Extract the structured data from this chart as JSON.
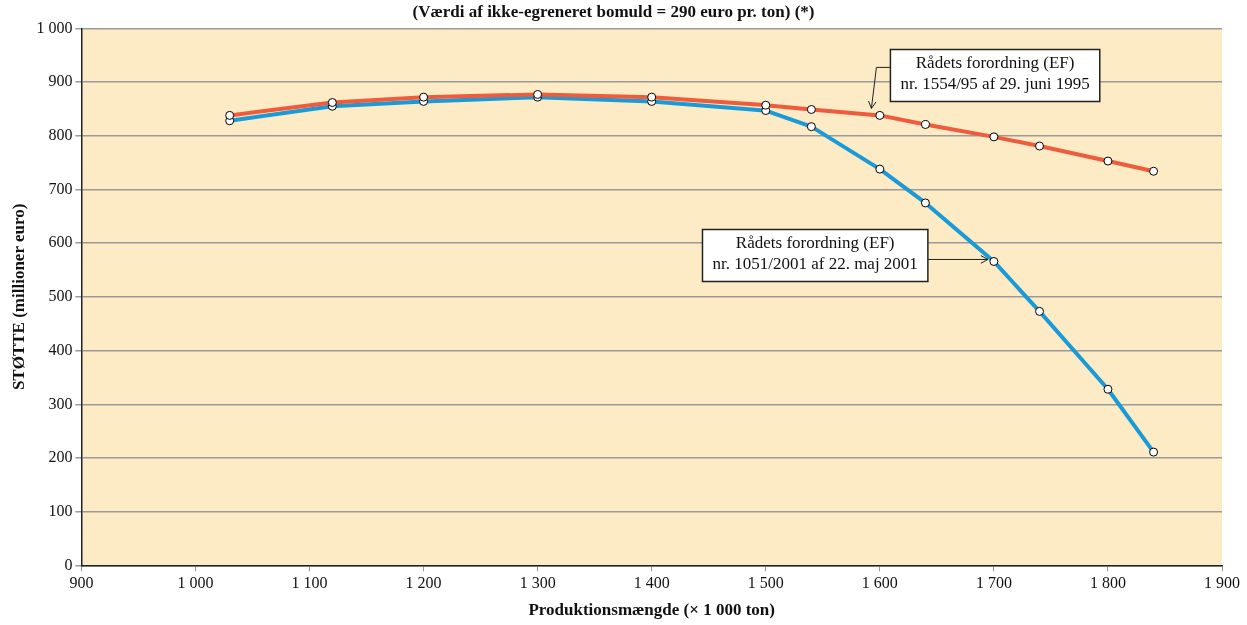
{
  "chart_data": {
    "type": "line",
    "title": "(Værdi af ikke-egreneret bomuld = 290 euro pr. ton) (*)",
    "xlabel": "Produktionsmængde (× 1 000 ton)",
    "ylabel": "STØTTE (millioner euro)",
    "xlim": [
      900,
      1900
    ],
    "xticks": [
      {
        "value": 900,
        "label": "900"
      },
      {
        "value": 1000,
        "label": "1 000"
      },
      {
        "value": 1100,
        "label": "1 100"
      },
      {
        "value": 1200,
        "label": "1 200"
      },
      {
        "value": 1300,
        "label": "1 300"
      },
      {
        "value": 1400,
        "label": "1 400"
      },
      {
        "value": 1500,
        "label": "1 500"
      },
      {
        "value": 1600,
        "label": "1 600"
      },
      {
        "value": 1700,
        "label": "1 700"
      },
      {
        "value": 1800,
        "label": "1 800"
      },
      {
        "value": 1900,
        "label": "1 900"
      }
    ],
    "ylim": [
      0,
      1000
    ],
    "yticks": [
      0,
      100,
      200,
      300,
      400,
      500,
      600,
      700,
      800,
      900,
      {
        "value": 1000,
        "label": "1 000"
      }
    ],
    "grid": "y",
    "marker": "circle",
    "line_style": "solid",
    "series": [
      {
        "color": "#ee5b3d",
        "x": [
          1030,
          1120,
          1200,
          1300,
          1400,
          1500,
          1540,
          1600,
          1640,
          1700,
          1740,
          1800,
          1840
        ],
        "values": [
          838,
          862,
          872,
          877,
          872,
          857,
          849,
          838,
          821,
          798,
          781,
          753,
          734
        ]
      },
      {
        "color": "#1a9ad6",
        "x": [
          1030,
          1120,
          1200,
          1300,
          1400,
          1500,
          1540,
          1600,
          1640,
          1700,
          1740,
          1800,
          1840
        ],
        "values": [
          828,
          855,
          864,
          872,
          864,
          847,
          817,
          738,
          675,
          566,
          473,
          328,
          211
        ]
      }
    ],
    "annotations": [
      {
        "text": "Rådets forordning (EF)\nnr. 1554/95 af 29. juni 1995",
        "x": 1590,
        "y": 838
      },
      {
        "text": "Rådets forordning (EF)\nnr. 1051/2001 af 22. maj 2001",
        "x": 1700,
        "y": 566
      }
    ]
  }
}
